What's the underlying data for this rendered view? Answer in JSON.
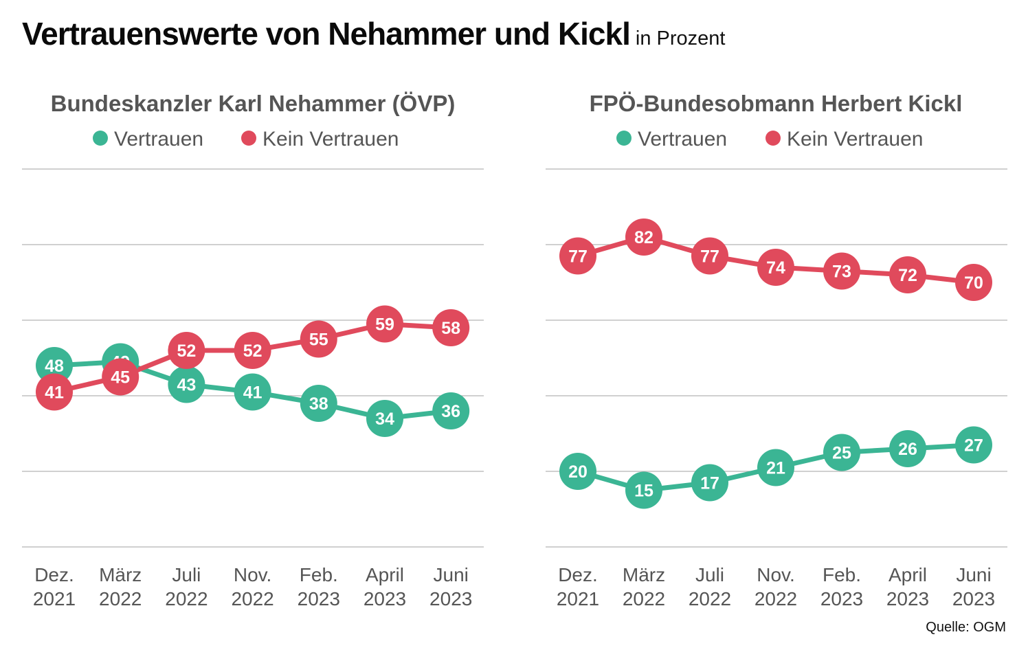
{
  "title": "Vertrauenswerte von Nehammer und Kickl",
  "subtitle": "in Prozent",
  "source": "Quelle: OGM",
  "colors": {
    "trust": "#3bb594",
    "distrust": "#e04a5c",
    "grid": "#b5b5b5",
    "muted": "#555555"
  },
  "chart_data": [
    {
      "type": "line",
      "title": "Bundeskanzler Karl Nehammer (ÖVP)",
      "categories": [
        [
          "Dez.",
          "2021"
        ],
        [
          "März",
          "2022"
        ],
        [
          "Juli",
          "2022"
        ],
        [
          "Nov.",
          "2022"
        ],
        [
          "Feb.",
          "2023"
        ],
        [
          "April",
          "2023"
        ],
        [
          "Juni",
          "2023"
        ]
      ],
      "series": [
        {
          "name": "Vertrauen",
          "color": "#3bb594",
          "values": [
            48,
            49,
            43,
            41,
            38,
            34,
            36
          ]
        },
        {
          "name": "Kein Vertrauen",
          "color": "#e04a5c",
          "values": [
            41,
            45,
            52,
            52,
            55,
            59,
            58
          ]
        }
      ],
      "ylim": [
        0,
        100
      ],
      "grid": true,
      "legend": "top-center"
    },
    {
      "type": "line",
      "title": "FPÖ-Bundesobmann Herbert Kickl",
      "categories": [
        [
          "Dez.",
          "2021"
        ],
        [
          "März",
          "2022"
        ],
        [
          "Juli",
          "2022"
        ],
        [
          "Nov.",
          "2022"
        ],
        [
          "Feb.",
          "2023"
        ],
        [
          "April",
          "2023"
        ],
        [
          "Juni",
          "2023"
        ]
      ],
      "series": [
        {
          "name": "Vertrauen",
          "color": "#3bb594",
          "values": [
            20,
            15,
            17,
            21,
            25,
            26,
            27
          ]
        },
        {
          "name": "Kein Vertrauen",
          "color": "#e04a5c",
          "values": [
            77,
            82,
            77,
            74,
            73,
            72,
            70
          ]
        }
      ],
      "ylim": [
        0,
        100
      ],
      "grid": true,
      "legend": "top-center"
    }
  ]
}
